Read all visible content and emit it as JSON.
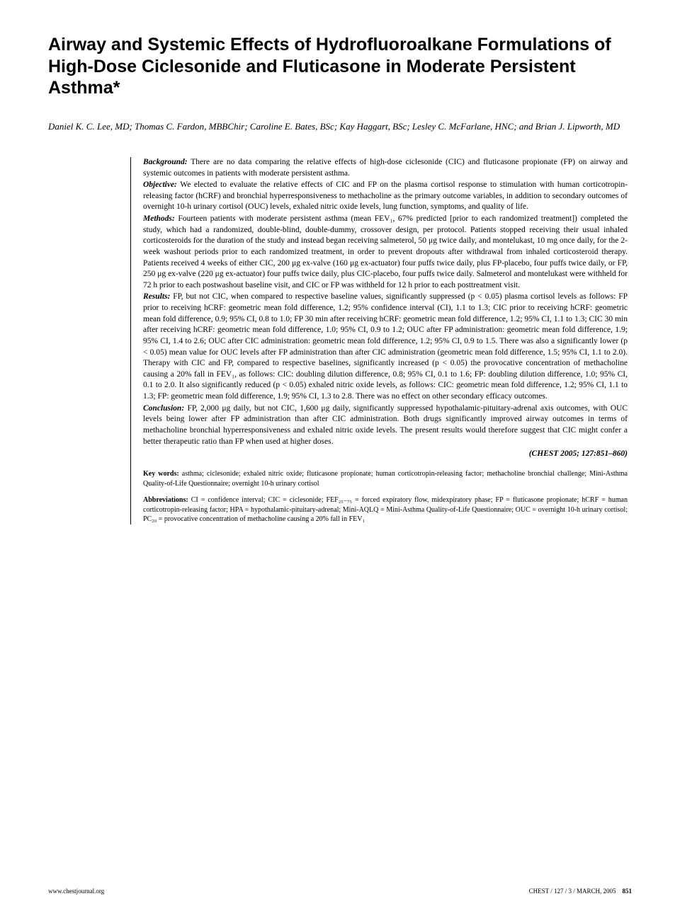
{
  "title": "Airway and Systemic Effects of Hydrofluoroalkane Formulations of High-Dose Ciclesonide and Fluticasone in Moderate Persistent Asthma*",
  "authors": "Daniel K. C. Lee, MD; Thomas C. Fardon, MBBChir; Caroline E. Bates, BSc; Kay Haggart, BSc; Lesley C. McFarlane, HNC; and Brian J. Lipworth, MD",
  "abstract": {
    "background": {
      "label": "Background:",
      "text": " There are no data comparing the relative effects of high-dose ciclesonide (CIC) and fluticasone propionate (FP) on airway and systemic outcomes in patients with moderate persistent asthma."
    },
    "objective": {
      "label": "Objective:",
      "text": " We elected to evaluate the relative effects of CIC and FP on the plasma cortisol response to stimulation with human corticotropin-releasing factor (hCRF) and bronchial hyperresponsiveness to methacholine as the primary outcome variables, in addition to secondary outcomes of overnight 10-h urinary cortisol (OUC) levels, exhaled nitric oxide levels, lung function, symptoms, and quality of life."
    },
    "methods": {
      "label": "Methods:",
      "text": " Fourteen patients with moderate persistent asthma (mean FEV₁, 67% predicted [prior to each randomized treatment]) completed the study, which had a randomized, double-blind, double-dummy, crossover design, per protocol. Patients stopped receiving their usual inhaled corticosteroids for the duration of the study and instead began receiving salmeterol, 50 μg twice daily, and montelukast, 10 mg once daily, for the 2-week washout periods prior to each randomized treatment, in order to prevent dropouts after withdrawal from inhaled corticosteroid therapy. Patients received 4 weeks of either CIC, 200 μg ex-valve (160 μg ex-actuator) four puffs twice daily, plus FP-placebo, four puffs twice daily, or FP, 250 μg ex-valve (220 μg ex-actuator) four puffs twice daily, plus CIC-placebo, four puffs twice daily. Salmeterol and montelukast were withheld for 72 h prior to each postwashout baseline visit, and CIC or FP was withheld for 12 h prior to each posttreatment visit."
    },
    "results": {
      "label": "Results:",
      "text": " FP, but not CIC, when compared to respective baseline values, significantly suppressed (p < 0.05) plasma cortisol levels as follows: FP prior to receiving hCRF: geometric mean fold difference, 1.2; 95% confidence interval (CI), 1.1 to 1.3; CIC prior to receiving hCRF: geometric mean fold difference, 0.9; 95% CI, 0.8 to 1.0; FP 30 min after receiving hCRF: geometric mean fold difference, 1.2; 95% CI, 1.1 to 1.3; CIC 30 min after receiving hCRF: geometric mean fold difference, 1.0; 95% CI, 0.9 to 1.2; OUC after FP administration: geometric mean fold difference, 1.9; 95% CI, 1.4 to 2.6; OUC after CIC administration: geometric mean fold difference, 1.2; 95% CI, 0.9 to 1.5. There was also a significantly lower (p < 0.05) mean value for OUC levels after FP administration than after CIC administration (geometric mean fold difference, 1.5; 95% CI, 1.1 to 2.0). Therapy with CIC and FP, compared to respective baselines, significantly increased (p < 0.05) the provocative concentration of methacholine causing a 20% fall in FEV₁, as follows: CIC: doubling dilution difference, 0.8; 95% CI, 0.1 to 1.6; FP: doubling dilution difference, 1.0; 95% CI, 0.1 to 2.0. It also significantly reduced (p < 0.05) exhaled nitric oxide levels, as follows: CIC: geometric mean fold difference, 1.2; 95% CI, 1.1 to 1.3; FP: geometric mean fold difference, 1.9; 95% CI, 1.3 to 2.8. There was no effect on other secondary efficacy outcomes."
    },
    "conclusion": {
      "label": "Conclusion:",
      "text": " FP, 2,000 μg daily, but not CIC, 1,600 μg daily, significantly suppressed hypothalamic-pituitary-adrenal axis outcomes, with OUC levels being lower after FP administration than after CIC administration. Both drugs significantly improved airway outcomes in terms of methacholine bronchial hyperresponsiveness and exhaled nitric oxide levels. The present results would therefore suggest that CIC might confer a better therapeutic ratio than FP when used at higher doses."
    }
  },
  "citation": "(CHEST 2005; 127:851–860)",
  "keywords": {
    "label": "Key words:",
    "text": " asthma; ciclesonide; exhaled nitric oxide; fluticasone propionate; human corticotropin-releasing factor; methacholine bronchial challenge; Mini-Asthma Quality-of-Life Questionnaire; overnight 10-h urinary cortisol"
  },
  "abbreviations": {
    "label": "Abbreviations:",
    "text": " CI = confidence interval; CIC = ciclesonide; FEF₂₅₋₇₅ = forced expiratory flow, midexpiratory phase; FP = fluticasone propionate; hCRF = human corticotropin-releasing factor; HPA = hypothalamic-pituitary-adrenal; Mini-AQLQ = Mini-Asthma Quality-of-Life Questionnaire; OUC = overnight 10-h urinary cortisol; PC₂₀ = provocative concentration of methacholine causing a 20% fall in FEV₁"
  },
  "footer": {
    "left": "www.chestjournal.org",
    "right": "CHEST / 127 / 3 / MARCH, 2005",
    "page": "851"
  }
}
